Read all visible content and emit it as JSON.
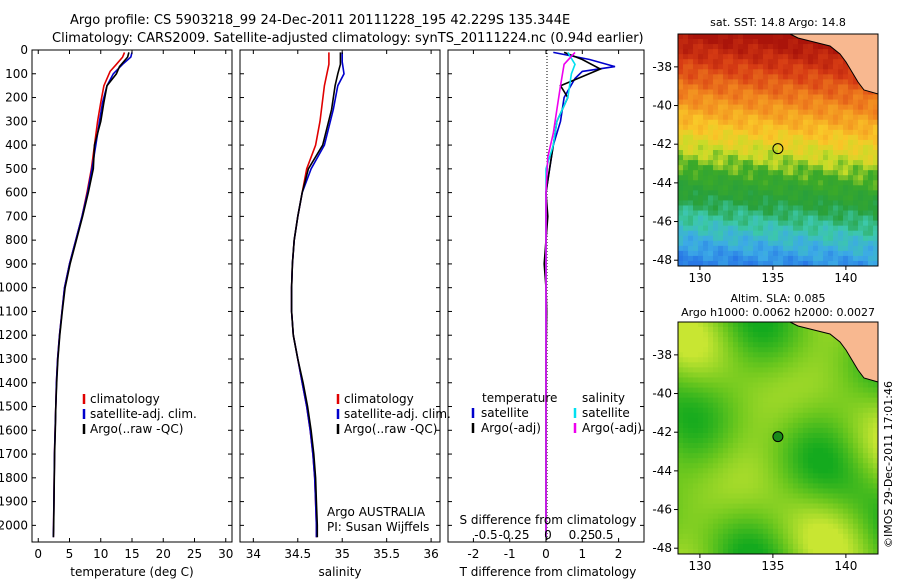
{
  "title": {
    "line1": "Argo profile: CS 5903218_99 24-Dec-2011 20111228_195 42.229S 135.344E",
    "line2": "Climatology: CARS2009. Satellite-adjusted climatology: synTS_20111224.nc (0.94d earlier)"
  },
  "colors": {
    "climatology": "#e00000",
    "satellite": "#0000cc",
    "argo": "#000000",
    "salinity_satellite": "#00e0f0",
    "salinity_argo": "#ee00ee",
    "land": "#f8b890",
    "circle": "#000000"
  },
  "chart_data": [
    {
      "type": "line",
      "id": "temperature",
      "xlabel": "temperature (deg C)",
      "ylabel": "",
      "xlim": [
        -1,
        31
      ],
      "ylim": [
        2070,
        0
      ],
      "xticks": [
        0,
        5,
        10,
        15,
        20,
        25,
        30
      ],
      "yticks": [
        0,
        100,
        200,
        300,
        400,
        500,
        600,
        700,
        800,
        900,
        1000,
        1100,
        1200,
        1300,
        1400,
        1500,
        1600,
        1700,
        1800,
        1900,
        2000
      ],
      "legend": [
        "climatology",
        "satellite-adj. clim.",
        "Argo(..raw -QC)"
      ],
      "series": [
        {
          "name": "climatology",
          "color": "climatology",
          "points": [
            [
              13.8,
              10
            ],
            [
              13.5,
              30
            ],
            [
              12.5,
              60
            ],
            [
              11.5,
              90
            ],
            [
              10.5,
              150
            ],
            [
              10.0,
              220
            ],
            [
              9.5,
              300
            ],
            [
              9.0,
              400
            ],
            [
              8.5,
              500
            ],
            [
              7.8,
              600
            ],
            [
              7.0,
              700
            ],
            [
              6.0,
              800
            ],
            [
              5.0,
              900
            ],
            [
              4.2,
              1000
            ],
            [
              3.8,
              1100
            ],
            [
              3.4,
              1200
            ],
            [
              3.1,
              1300
            ],
            [
              2.9,
              1400
            ],
            [
              2.8,
              1500
            ],
            [
              2.7,
              1600
            ],
            [
              2.6,
              1700
            ],
            [
              2.55,
              1800
            ],
            [
              2.5,
              1900
            ],
            [
              2.45,
              2000
            ],
            [
              2.4,
              2050
            ]
          ]
        },
        {
          "name": "satellite-adj. clim.",
          "color": "satellite",
          "points": [
            [
              15.0,
              10
            ],
            [
              14.8,
              30
            ],
            [
              13.5,
              60
            ],
            [
              12.0,
              100
            ],
            [
              11.0,
              150
            ],
            [
              10.3,
              220
            ],
            [
              9.8,
              300
            ],
            [
              9.2,
              400
            ],
            [
              8.6,
              500
            ],
            [
              7.9,
              600
            ],
            [
              7.0,
              700
            ],
            [
              6.0,
              800
            ],
            [
              5.0,
              900
            ],
            [
              4.2,
              1000
            ],
            [
              3.8,
              1100
            ],
            [
              3.4,
              1200
            ],
            [
              3.1,
              1300
            ],
            [
              2.9,
              1400
            ],
            [
              2.8,
              1500
            ],
            [
              2.7,
              1600
            ],
            [
              2.6,
              1700
            ],
            [
              2.55,
              1800
            ],
            [
              2.5,
              1900
            ],
            [
              2.45,
              2000
            ],
            [
              2.4,
              2050
            ]
          ]
        },
        {
          "name": "Argo(..raw -QC)",
          "color": "argo",
          "points": [
            [
              14.5,
              10
            ],
            [
              14.3,
              30
            ],
            [
              13.0,
              70
            ],
            [
              12.5,
              100
            ],
            [
              11.0,
              150
            ],
            [
              10.5,
              220
            ],
            [
              10.0,
              300
            ],
            [
              9.0,
              400
            ],
            [
              8.8,
              500
            ],
            [
              8.0,
              600
            ],
            [
              7.1,
              700
            ],
            [
              6.1,
              800
            ],
            [
              5.1,
              900
            ],
            [
              4.3,
              1000
            ],
            [
              3.85,
              1100
            ],
            [
              3.45,
              1200
            ],
            [
              3.15,
              1300
            ],
            [
              2.95,
              1400
            ],
            [
              2.8,
              1500
            ],
            [
              2.72,
              1600
            ],
            [
              2.62,
              1700
            ],
            [
              2.57,
              1800
            ],
            [
              2.52,
              1900
            ],
            [
              2.47,
              2000
            ],
            [
              2.42,
              2050
            ]
          ]
        }
      ]
    },
    {
      "type": "line",
      "id": "salinity",
      "xlabel": "salinity",
      "ylabel": "",
      "xlim": [
        33.85,
        36.1
      ],
      "ylim": [
        2070,
        0
      ],
      "xticks": [
        34,
        34.5,
        35,
        35.5,
        36
      ],
      "legend": [
        "climatology",
        "satellite-adj. clim.",
        "Argo(..raw -QC)"
      ],
      "annotation": [
        "Argo AUSTRALIA",
        "PI: Susan Wijffels"
      ],
      "series": [
        {
          "name": "climatology",
          "color": "climatology",
          "points": [
            [
              34.85,
              10
            ],
            [
              34.85,
              60
            ],
            [
              34.8,
              150
            ],
            [
              34.75,
              300
            ],
            [
              34.7,
              400
            ],
            [
              34.6,
              500
            ],
            [
              34.55,
              600
            ],
            [
              34.5,
              700
            ],
            [
              34.46,
              800
            ],
            [
              34.44,
              900
            ],
            [
              34.43,
              1000
            ],
            [
              34.43,
              1100
            ],
            [
              34.45,
              1200
            ],
            [
              34.5,
              1300
            ],
            [
              34.55,
              1400
            ],
            [
              34.6,
              1500
            ],
            [
              34.64,
              1600
            ],
            [
              34.67,
              1700
            ],
            [
              34.69,
              1800
            ],
            [
              34.7,
              1900
            ],
            [
              34.71,
              2000
            ],
            [
              34.71,
              2050
            ]
          ]
        },
        {
          "name": "satellite-adj. clim.",
          "color": "satellite",
          "points": [
            [
              35.0,
              10
            ],
            [
              35.0,
              50
            ],
            [
              35.02,
              100
            ],
            [
              34.95,
              150
            ],
            [
              34.9,
              250
            ],
            [
              34.8,
              400
            ],
            [
              34.65,
              500
            ],
            [
              34.55,
              600
            ],
            [
              34.5,
              700
            ],
            [
              34.46,
              800
            ],
            [
              34.44,
              900
            ],
            [
              34.43,
              1000
            ],
            [
              34.43,
              1100
            ],
            [
              34.45,
              1200
            ],
            [
              34.5,
              1300
            ],
            [
              34.55,
              1400
            ],
            [
              34.6,
              1500
            ],
            [
              34.64,
              1600
            ],
            [
              34.67,
              1700
            ],
            [
              34.69,
              1800
            ],
            [
              34.7,
              1900
            ],
            [
              34.71,
              2000
            ],
            [
              34.71,
              2050
            ]
          ]
        },
        {
          "name": "Argo(..raw -QC)",
          "color": "argo",
          "points": [
            [
              34.98,
              10
            ],
            [
              34.98,
              60
            ],
            [
              34.95,
              100
            ],
            [
              34.92,
              150
            ],
            [
              34.88,
              250
            ],
            [
              34.78,
              400
            ],
            [
              34.62,
              500
            ],
            [
              34.55,
              600
            ],
            [
              34.5,
              700
            ],
            [
              34.46,
              800
            ],
            [
              34.44,
              900
            ],
            [
              34.43,
              1000
            ],
            [
              34.43,
              1100
            ],
            [
              34.45,
              1200
            ],
            [
              34.5,
              1300
            ],
            [
              34.56,
              1400
            ],
            [
              34.61,
              1500
            ],
            [
              34.65,
              1600
            ],
            [
              34.68,
              1700
            ],
            [
              34.7,
              1800
            ],
            [
              34.71,
              1900
            ],
            [
              34.72,
              2000
            ],
            [
              34.72,
              2050
            ]
          ]
        }
      ]
    },
    {
      "type": "line",
      "id": "difference",
      "xlabel": "T difference from climatology",
      "xlabel_top": "S difference from climatology",
      "ylabel": "",
      "xlim": [
        -2.7,
        2.7
      ],
      "ylim": [
        2070,
        0
      ],
      "xticks": [
        -2,
        -1,
        0,
        1,
        2
      ],
      "s_ticks": [
        "-0.5",
        "-0.25",
        "0",
        "0.25",
        "0.5"
      ],
      "legend_temperature": {
        "title": "temperature",
        "items": [
          "satellite",
          "Argo(-adj)"
        ]
      },
      "legend_salinity": {
        "title": "salinity",
        "items": [
          "satellite",
          "Argo(-adj)"
        ]
      },
      "series": [
        {
          "name": "satellite",
          "color": "satellite",
          "points": [
            [
              0.2,
              10
            ],
            [
              1.2,
              40
            ],
            [
              1.9,
              70
            ],
            [
              1.0,
              90
            ],
            [
              0.8,
              120
            ],
            [
              0.5,
              200
            ],
            [
              0.4,
              300
            ],
            [
              0.2,
              400
            ],
            [
              0.1,
              500
            ],
            [
              0.0,
              600
            ],
            [
              0.0,
              700
            ],
            [
              0.0,
              800
            ],
            [
              0.0,
              900
            ],
            [
              0,
              1000
            ],
            [
              0,
              2050
            ]
          ]
        },
        {
          "name": "Argo(-adj)",
          "color": "argo",
          "points": [
            [
              0.5,
              10
            ],
            [
              1.0,
              40
            ],
            [
              1.5,
              80
            ],
            [
              0.4,
              150
            ],
            [
              0.6,
              200
            ],
            [
              0.3,
              300
            ],
            [
              0.2,
              400
            ],
            [
              0.1,
              500
            ],
            [
              0.0,
              600
            ],
            [
              0.05,
              700
            ],
            [
              0.0,
              800
            ],
            [
              -0.05,
              900
            ],
            [
              0.0,
              1000
            ],
            [
              0.02,
              1100
            ],
            [
              0,
              1300
            ],
            [
              0,
              2050
            ]
          ]
        },
        {
          "name": "satellite",
          "color": "salinity_satellite",
          "points": [
            [
              0.6,
              10
            ],
            [
              0.8,
              60
            ],
            [
              0.7,
              100
            ],
            [
              0.6,
              200
            ],
            [
              0.3,
              300
            ],
            [
              0.2,
              400
            ],
            [
              0.0,
              500
            ],
            [
              0.0,
              600
            ],
            [
              0.0,
              800
            ],
            [
              0,
              1000
            ],
            [
              0,
              2050
            ]
          ]
        },
        {
          "name": "Argo(-adj)",
          "color": "salinity_argo",
          "points": [
            [
              0.8,
              10
            ],
            [
              0.5,
              60
            ],
            [
              0.4,
              150
            ],
            [
              0.3,
              250
            ],
            [
              0.2,
              350
            ],
            [
              0.05,
              450
            ],
            [
              0.0,
              600
            ],
            [
              0.0,
              800
            ],
            [
              0,
              1000
            ],
            [
              0,
              2050
            ]
          ]
        }
      ]
    },
    {
      "type": "heatmap",
      "id": "sst_map",
      "title": "sat. SST: 14.8 Argo: 14.8",
      "xlim": [
        128.5,
        142.2
      ],
      "ylim": [
        -48.3,
        -36.3
      ],
      "xticks": [
        130,
        135,
        140
      ],
      "yticks": [
        -38,
        -40,
        -42,
        -44,
        -46,
        -48
      ],
      "marker": [
        135.344,
        -42.229
      ]
    },
    {
      "type": "heatmap",
      "id": "sla_map",
      "title_line1": "Altim. SLA: 0.085",
      "title_line2": "Argo h1000: 0.0062 h2000: 0.0027",
      "xlim": [
        128.5,
        142.2
      ],
      "ylim": [
        -48.3,
        -36.3
      ],
      "xticks": [
        130,
        135,
        140
      ],
      "yticks": [
        -38,
        -40,
        -42,
        -44,
        -46,
        -48
      ],
      "marker": [
        135.344,
        -42.229
      ]
    }
  ],
  "footer": "©IMOS 29-Dec-2011 17:01:46"
}
